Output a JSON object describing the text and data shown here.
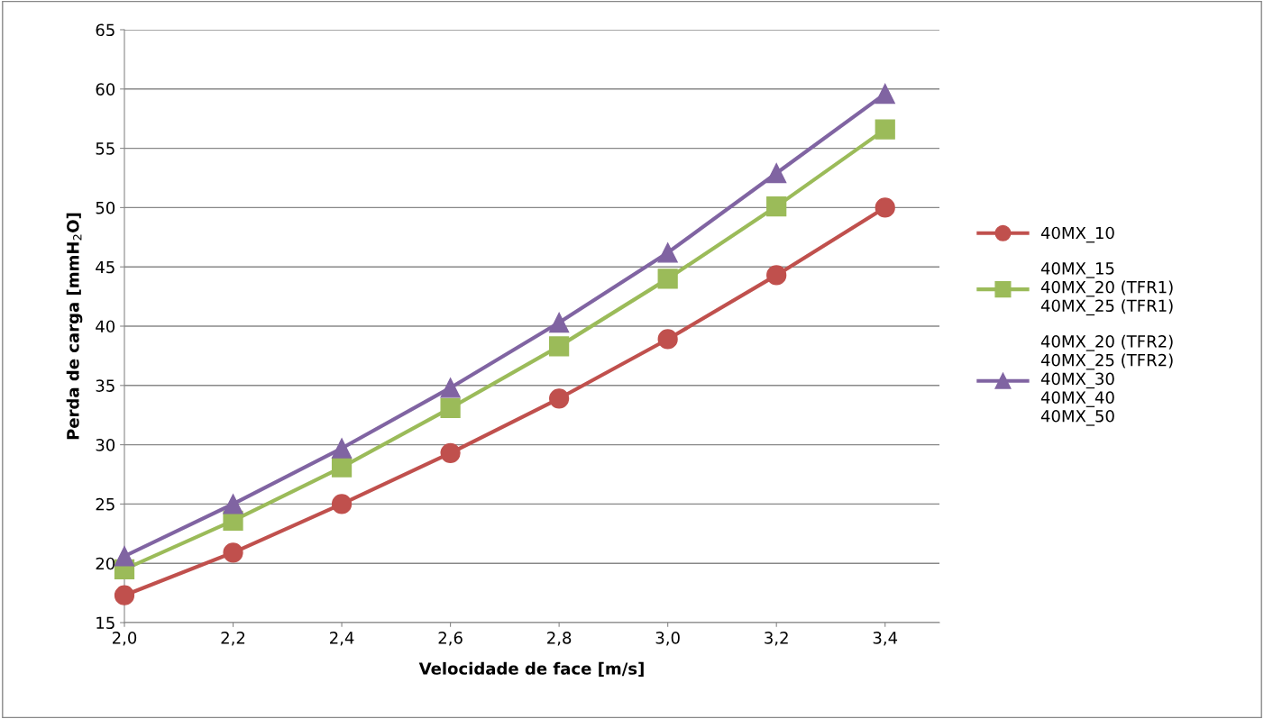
{
  "chart_data": {
    "type": "line",
    "xlabel": "Velocidade de face [m/s]",
    "ylabel": "Perda de carga [mmH$_{2}$O]",
    "x": [
      2.0,
      2.2,
      2.4,
      2.6,
      2.8,
      3.0,
      3.2,
      3.4
    ],
    "series": [
      {
        "name": "40MX_10",
        "color": "#c0504d",
        "marker": "circle",
        "values": [
          17.3,
          20.9,
          25.0,
          29.3,
          33.9,
          38.9,
          44.3,
          50.0
        ]
      },
      {
        "name": "40MX_15\n40MX_20 (TFR1)\n40MX_25 (TFR1)",
        "color": "#9bbb59",
        "marker": "square",
        "values": [
          19.5,
          23.6,
          28.1,
          33.1,
          38.3,
          44.0,
          50.1,
          56.6
        ]
      },
      {
        "name": "40MX_20 (TFR2)\n40MX_25 (TFR2)\n40MX_30\n40MX_40\n40MX_50",
        "color": "#8064a2",
        "marker": "triangle",
        "values": [
          20.6,
          25.0,
          29.7,
          34.8,
          40.3,
          46.2,
          52.9,
          59.6
        ]
      }
    ],
    "xlim": [
      2.0,
      3.5
    ],
    "xticks": [
      {
        "value": 2.0,
        "label": "2,0"
      },
      {
        "value": 2.2,
        "label": "2,2"
      },
      {
        "value": 2.4,
        "label": "2,4"
      },
      {
        "value": 2.6,
        "label": "2,6"
      },
      {
        "value": 2.8,
        "label": "2,8"
      },
      {
        "value": 3.0,
        "label": "3,0"
      },
      {
        "value": 3.2,
        "label": "3,2"
      },
      {
        "value": 3.4,
        "label": "3,4"
      }
    ],
    "ylim": [
      15,
      65
    ],
    "yticks": [
      15,
      20,
      25,
      30,
      35,
      40,
      45,
      50,
      55,
      60,
      65
    ],
    "grid": "y",
    "legend": "right",
    "line_style": "solid"
  }
}
